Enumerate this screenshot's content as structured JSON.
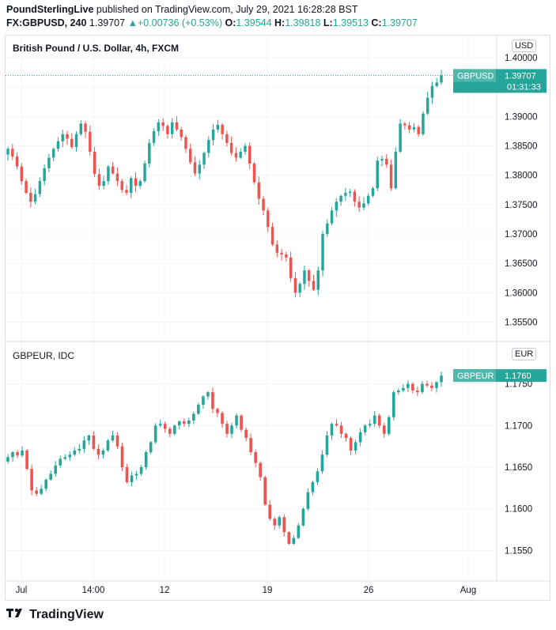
{
  "header": {
    "publisher": "PoundSterlingLive",
    "published_text": "published on TradingView.com, July 29, 2021 16:28:28 BST",
    "symbol": "FX:GBPUSD, 240",
    "last": "1.39707",
    "change": "+0.00736 (+0.53%)",
    "o_label": "O:",
    "o": "1.39544",
    "h_label": "H:",
    "h": "1.39818",
    "l_label": "L:",
    "l": "1.39513",
    "c_label": "C:",
    "c": "1.39707"
  },
  "footer": {
    "brand": "TradingView",
    "logo_icon": "tradingview-logo-icon"
  },
  "colors": {
    "up": "#26a69a",
    "down": "#ef5350",
    "grid": "#f0f3fa",
    "axis_text": "#131722"
  },
  "x_axis": {
    "labels": [
      "Jul",
      "14:00",
      "12",
      "19",
      "26",
      "Aug"
    ]
  },
  "chart_data": [
    {
      "type": "candlestick",
      "title": "British Pound / U.S. Dollar, 4h, FXCM",
      "unit": "USD",
      "price_label": {
        "symbol": "GBPUSD",
        "value": "1.39707",
        "countdown": "01:31:33"
      },
      "yticks": [
        "1.40000",
        "1.39500",
        "1.39000",
        "1.38500",
        "1.38000",
        "1.37500",
        "1.37000",
        "1.36500",
        "1.36000",
        "1.35500"
      ],
      "ylim": [
        1.3525,
        1.4015
      ],
      "closes": [
        1.3845,
        1.3832,
        1.3815,
        1.379,
        1.377,
        1.3755,
        1.3768,
        1.379,
        1.3812,
        1.383,
        1.3845,
        1.3858,
        1.387,
        1.3862,
        1.3848,
        1.387,
        1.3888,
        1.3874,
        1.384,
        1.3802,
        1.3782,
        1.379,
        1.3815,
        1.3803,
        1.379,
        1.3775,
        1.377,
        1.3795,
        1.3782,
        1.379,
        1.382,
        1.3855,
        1.3875,
        1.389,
        1.3884,
        1.387,
        1.389,
        1.3878,
        1.3865,
        1.3845,
        1.3822,
        1.3803,
        1.3818,
        1.3838,
        1.386,
        1.3878,
        1.3886,
        1.387,
        1.3855,
        1.3838,
        1.383,
        1.384,
        1.385,
        1.382,
        1.3788,
        1.376,
        1.374,
        1.3712,
        1.3682,
        1.3668,
        1.3665,
        1.366,
        1.3625,
        1.36,
        1.3615,
        1.3638,
        1.362,
        1.3605,
        1.3638,
        1.37,
        1.3718,
        1.374,
        1.3755,
        1.3765,
        1.377,
        1.3772,
        1.3755,
        1.3745,
        1.3752,
        1.3765,
        1.3778,
        1.3825,
        1.3828,
        1.3818,
        1.3778,
        1.384,
        1.3888,
        1.3885,
        1.3878,
        1.3882,
        1.387,
        1.3905,
        1.3932,
        1.3952,
        1.3958,
        1.397
      ],
      "series_name": "GBPUSD"
    },
    {
      "type": "candlestick",
      "title": "GBPEUR, IDC",
      "unit": "EUR",
      "price_label": {
        "symbol": "GBPEUR",
        "value": "1.1760"
      },
      "yticks": [
        "1.1750",
        "1.1700",
        "1.1650",
        "1.1600",
        "1.1550"
      ],
      "ylim": [
        1.152,
        1.178
      ],
      "closes": [
        1.1662,
        1.1668,
        1.1664,
        1.167,
        1.1648,
        1.1622,
        1.1618,
        1.1624,
        1.1635,
        1.1642,
        1.1652,
        1.166,
        1.1662,
        1.1665,
        1.167,
        1.1672,
        1.1682,
        1.1688,
        1.1672,
        1.1665,
        1.167,
        1.1682,
        1.1688,
        1.1675,
        1.165,
        1.1632,
        1.164,
        1.1642,
        1.165,
        1.1668,
        1.168,
        1.17,
        1.1702,
        1.1696,
        1.169,
        1.17,
        1.1705,
        1.1702,
        1.1706,
        1.1714,
        1.1725,
        1.1735,
        1.174,
        1.172,
        1.1715,
        1.1702,
        1.169,
        1.17,
        1.1712,
        1.1695,
        1.1685,
        1.1668,
        1.1655,
        1.1638,
        1.1605,
        1.1588,
        1.158,
        1.159,
        1.1572,
        1.1558,
        1.1565,
        1.158,
        1.16,
        1.162,
        1.1632,
        1.1645,
        1.1665,
        1.1688,
        1.1702,
        1.17,
        1.169,
        1.1685,
        1.167,
        1.168,
        1.1692,
        1.17,
        1.1702,
        1.1712,
        1.17,
        1.169,
        1.171,
        1.174,
        1.1742,
        1.1745,
        1.175,
        1.1742,
        1.174,
        1.175,
        1.1748,
        1.1745,
        1.1752,
        1.176
      ],
      "series_name": "GBPEUR"
    }
  ]
}
